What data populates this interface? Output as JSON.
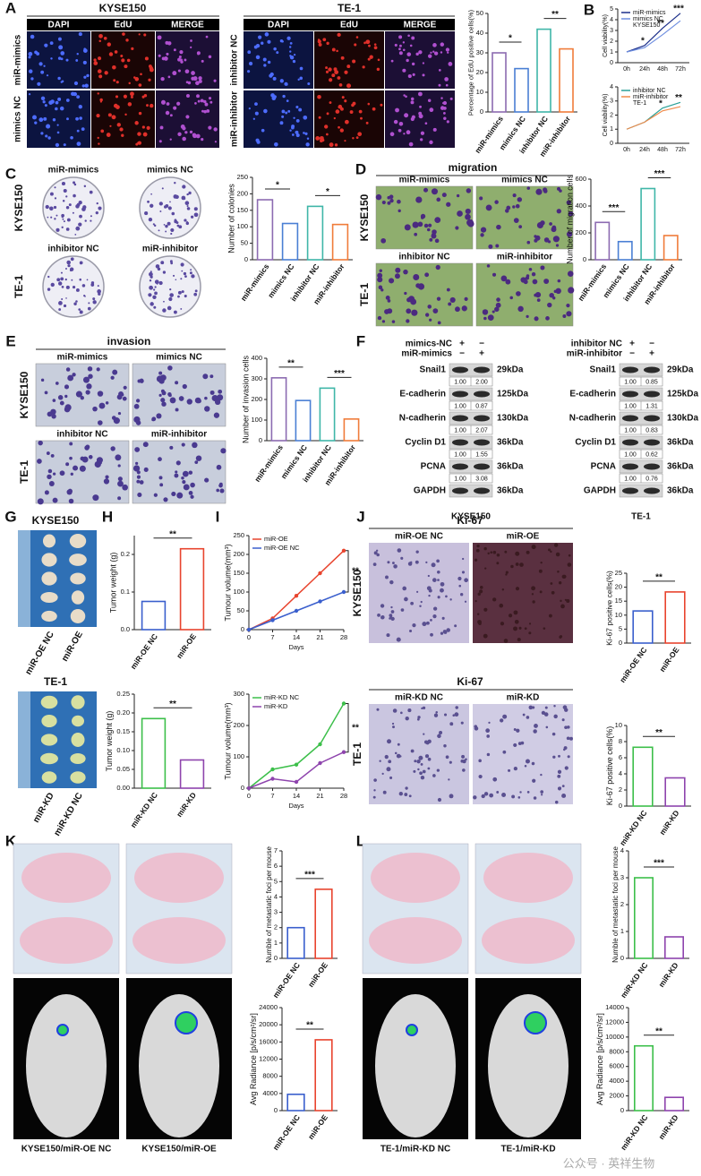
{
  "figure": {
    "panels": [
      "A",
      "B",
      "C",
      "D",
      "E",
      "F",
      "G",
      "H",
      "I",
      "J",
      "K",
      "L"
    ],
    "edu": {
      "cell_lines": [
        "KYSE150",
        "TE-1"
      ],
      "stains": [
        "DAPI",
        "EdU",
        "MERGE"
      ],
      "kyse150_rows": [
        "miR-mimics",
        "mimics NC"
      ],
      "te1_rows": [
        "inhibitor NC",
        "miR-inhibitor"
      ]
    },
    "colony": {
      "images": [
        "miR-mimics",
        "mimics NC",
        "inhibitor NC",
        "miR-inhibitor"
      ],
      "cell_lines": [
        "KYSE150",
        "TE-1"
      ]
    },
    "migration": {
      "title": "migration",
      "images": [
        "miR-mimics",
        "mimics NC",
        "inhibitor NC",
        "miR-inhibitor"
      ],
      "cell_lines": [
        "KYSE150",
        "TE-1"
      ]
    },
    "invasion": {
      "title": "invasion",
      "images": [
        "miR-mimics",
        "mimics NC",
        "inhibitor NC",
        "miR-inhibitor"
      ],
      "cell_lines": [
        "KYSE150",
        "TE-1"
      ]
    },
    "blots": [
      {
        "conditions": [
          {
            "name": "mimics-NC",
            "signs": [
              "+",
              "−"
            ]
          },
          {
            "name": "miR-mimics",
            "signs": [
              "−",
              "+"
            ]
          }
        ],
        "rows": [
          {
            "protein": "Snail1",
            "size": "29kDa",
            "ratios": [
              "1.00",
              "2.00"
            ]
          },
          {
            "protein": "E-cadherin",
            "size": "125kDa",
            "ratios": [
              "1.00",
              "0.87"
            ]
          },
          {
            "protein": "N-cadherin",
            "size": "130kDa",
            "ratios": [
              "1.00",
              "2.07"
            ]
          },
          {
            "protein": "Cyclin D1",
            "size": "36kDa",
            "ratios": [
              "1.00",
              "1.55"
            ]
          },
          {
            "protein": "PCNA",
            "size": "36kDa",
            "ratios": [
              "1.00",
              "3.08"
            ]
          },
          {
            "protein": "GAPDH",
            "size": "36kDa"
          }
        ],
        "cell_line": "KYSE150"
      },
      {
        "conditions": [
          {
            "name": "inhibitor NC",
            "signs": [
              "+",
              "−"
            ]
          },
          {
            "name": "miR-inhibitor",
            "signs": [
              "−",
              "+"
            ]
          }
        ],
        "rows": [
          {
            "protein": "Snail1",
            "size": "29kDa",
            "ratios": [
              "1.00",
              "0.85"
            ]
          },
          {
            "protein": "E-cadherin",
            "size": "125kDa",
            "ratios": [
              "1.00",
              "1.31"
            ]
          },
          {
            "protein": "N-cadherin",
            "size": "130kDa",
            "ratios": [
              "1.00",
              "0.83"
            ]
          },
          {
            "protein": "Cyclin D1",
            "size": "36kDa",
            "ratios": [
              "1.00",
              "0.62"
            ]
          },
          {
            "protein": "PCNA",
            "size": "36kDa",
            "ratios": [
              "1.00",
              "0.76"
            ]
          },
          {
            "protein": "GAPDH",
            "size": "36kDa"
          }
        ],
        "cell_line": "TE-1"
      }
    ],
    "tumors": {
      "cell_lines": [
        "KYSE150",
        "TE-1"
      ],
      "kyse150_groups": [
        "miR-OE NC",
        "miR-OE"
      ],
      "te1_groups": [
        "miR-KD",
        "miR-KD NC"
      ]
    },
    "ihc": {
      "stain": "Ki-67",
      "cell_lines": [
        "KYSE150",
        "TE-1"
      ],
      "kyse150_groups": [
        "miR-OE NC",
        "miR-OE"
      ],
      "te1_groups": [
        "miR-KD NC",
        "miR-KD"
      ]
    },
    "metastasis": {
      "kyse150_mice": [
        "KYSE150/miR-OE NC",
        "KYSE150/miR-OE"
      ],
      "te1_mice": [
        "TE-1/miR-KD NC",
        "TE-1/miR-KD"
      ]
    },
    "watermark": "公众号 · 英祥生物"
  },
  "chart_data": [
    {
      "type": "bar",
      "ylabel": "Percentage of EdU positive cells(%)",
      "categories": [
        "miR-mimics",
        "mimics NC",
        "inhibitor NC",
        "miR-inhibitor"
      ],
      "values": [
        30,
        22,
        42,
        32
      ],
      "colors": [
        "#8c6bb1",
        "#4a7fd4",
        "#3fb6a8",
        "#f07c3a"
      ],
      "ylim": [
        0,
        50
      ],
      "yticks": [
        0,
        10,
        20,
        30,
        40,
        50
      ],
      "annotations": [
        "*",
        "**"
      ]
    },
    {
      "type": "line",
      "ylabel": "Cell viability(%)",
      "subtitle": "KYSE150",
      "categories": [
        "0h",
        "24h",
        "48h",
        "72h"
      ],
      "series": [
        {
          "name": "miR-mimics",
          "color": "#1c2f8a",
          "values": [
            1,
            1.6,
            3.2,
            4.6
          ]
        },
        {
          "name": "mimics NC",
          "color": "#6f8fe0",
          "values": [
            1,
            1.4,
            2.6,
            3.9
          ]
        }
      ],
      "ylim": [
        0,
        5
      ],
      "yticks": [
        0,
        1,
        2,
        3,
        4,
        5
      ],
      "annotations": [
        "*",
        "**",
        "***"
      ]
    },
    {
      "type": "line",
      "ylabel": "Cell viability(%)",
      "subtitle": "TE-1",
      "categories": [
        "0h",
        "24h",
        "48h",
        "72h"
      ],
      "series": [
        {
          "name": "inhibitor NC",
          "color": "#2aa198",
          "values": [
            1,
            1.5,
            2.5,
            2.9
          ]
        },
        {
          "name": "miR-inhibitor",
          "color": "#f08a4b",
          "values": [
            1,
            1.5,
            2.3,
            2.6
          ]
        }
      ],
      "ylim": [
        0,
        4
      ],
      "yticks": [
        0,
        1,
        2,
        3,
        4
      ],
      "annotations": [
        "*",
        "**"
      ]
    },
    {
      "type": "bar",
      "ylabel": "Number of colonies",
      "categories": [
        "miR-mimics",
        "mimics NC",
        "inhibitor NC",
        "miR-inhibitor"
      ],
      "values": [
        182,
        110,
        162,
        107
      ],
      "colors": [
        "#8c6bb1",
        "#4a7fd4",
        "#3fb6a8",
        "#f07c3a"
      ],
      "ylim": [
        0,
        250
      ],
      "yticks": [
        0,
        50,
        100,
        150,
        200,
        250
      ],
      "annotations": [
        "*",
        "*"
      ]
    },
    {
      "type": "bar",
      "ylabel": "Number of migration cells",
      "categories": [
        "miR-mimics",
        "mimics NC",
        "inhibitor NC",
        "miR-inhibitor"
      ],
      "values": [
        278,
        135,
        530,
        180
      ],
      "colors": [
        "#8c6bb1",
        "#4a7fd4",
        "#3fb6a8",
        "#f07c3a"
      ],
      "ylim": [
        0,
        600
      ],
      "yticks": [
        0,
        200,
        400,
        600
      ],
      "annotations": [
        "***",
        "***"
      ]
    },
    {
      "type": "bar",
      "ylabel": "Number of invasion cells",
      "categories": [
        "miR-mimics",
        "mimics NC",
        "inhibitor NC",
        "miR-inhibitor"
      ],
      "values": [
        305,
        195,
        255,
        105
      ],
      "colors": [
        "#8c6bb1",
        "#4a7fd4",
        "#3fb6a8",
        "#f07c3a"
      ],
      "ylim": [
        0,
        400
      ],
      "yticks": [
        0,
        100,
        200,
        300,
        400
      ],
      "annotations": [
        "**",
        "***"
      ]
    },
    {
      "type": "bar",
      "ylabel": "Tumor weight (g)",
      "categories": [
        "miR-OE NC",
        "miR-OE"
      ],
      "values": [
        0.075,
        0.215
      ],
      "colors": [
        "#3a5fcd",
        "#e8442e"
      ],
      "ylim": [
        0,
        0.25
      ],
      "yticks": [
        {
          "value": 0,
          "label": "0.0"
        },
        0.1,
        0.2
      ],
      "annotations": [
        "**"
      ]
    },
    {
      "type": "bar",
      "ylabel": "Tumor weight (g)",
      "categories": [
        "miR-KD NC",
        "miR-KD"
      ],
      "values": [
        0.185,
        0.075
      ],
      "colors": [
        "#3cbf4a",
        "#8e44ad"
      ],
      "ylim": [
        0,
        0.25
      ],
      "yticks": [
        {
          "value": 0,
          "label": "0.00"
        },
        0.05,
        {
          "value": 0.1,
          "label": "0.10"
        },
        0.15,
        {
          "value": 0.2,
          "label": "0.20"
        },
        0.25
      ],
      "annotations": [
        "**"
      ]
    },
    {
      "type": "line",
      "ylabel": "Tumour volume(mm³)",
      "xlabel": "Days",
      "x": [
        0,
        7,
        14,
        21,
        28
      ],
      "xlim": [
        0,
        28
      ],
      "xticks": [
        0,
        7,
        14,
        21,
        28
      ],
      "series": [
        {
          "name": "miR-OE",
          "color": "#e8442e",
          "values": [
            0,
            30,
            90,
            150,
            210
          ]
        },
        {
          "name": "miR-OE NC",
          "color": "#3a5fcd",
          "values": [
            0,
            25,
            50,
            75,
            100
          ]
        }
      ],
      "ylim": [
        0,
        250
      ],
      "yticks": [
        0,
        50,
        100,
        150,
        200,
        250
      ],
      "annotations": [
        "**"
      ]
    },
    {
      "type": "line",
      "ylabel": "Tumour volume(mm³)",
      "xlabel": "Days",
      "x": [
        0,
        7,
        14,
        21,
        28
      ],
      "xlim": [
        0,
        28
      ],
      "xticks": [
        0,
        7,
        14,
        21,
        28
      ],
      "series": [
        {
          "name": "miR-KD NC",
          "color": "#3cbf4a",
          "values": [
            0,
            60,
            75,
            140,
            270
          ]
        },
        {
          "name": "miR-KD",
          "color": "#8e44ad",
          "values": [
            0,
            30,
            20,
            80,
            115
          ]
        }
      ],
      "ylim": [
        0,
        300
      ],
      "yticks": [
        0,
        100,
        200,
        300
      ],
      "annotations": [
        "**"
      ]
    },
    {
      "type": "bar",
      "ylabel": "Ki-67 positive cells(%)",
      "categories": [
        "miR-OE NC",
        "miR-OE"
      ],
      "values": [
        11.5,
        18.3
      ],
      "colors": [
        "#3a5fcd",
        "#e8442e"
      ],
      "ylim": [
        0,
        25
      ],
      "yticks": [
        0,
        5,
        10,
        15,
        20,
        25
      ],
      "annotations": [
        "**"
      ]
    },
    {
      "type": "bar",
      "ylabel": "Ki-67 positive cells(%)",
      "categories": [
        "miR-KD NC",
        "miR-KD"
      ],
      "values": [
        7.3,
        3.5
      ],
      "colors": [
        "#3cbf4a",
        "#8e44ad"
      ],
      "ylim": [
        0,
        10
      ],
      "yticks": [
        0,
        2,
        4,
        6,
        8,
        10
      ],
      "annotations": [
        "**"
      ]
    },
    {
      "type": "bar",
      "ylabel": "Numble of metastatic foci per mouse",
      "categories": [
        "miR-OE NC",
        "miR-OE"
      ],
      "values": [
        2,
        4.5
      ],
      "colors": [
        "#3a5fcd",
        "#e8442e"
      ],
      "ylim": [
        0,
        7
      ],
      "yticks": [
        0,
        1,
        2,
        3,
        4,
        5,
        6,
        7
      ],
      "annotations": [
        "***"
      ]
    },
    {
      "type": "bar",
      "ylabel": "Avg Radiance [p/s/cm²/sr]",
      "categories": [
        "miR-OE NC",
        "miR-OE"
      ],
      "values": [
        3800,
        16500
      ],
      "colors": [
        "#3a5fcd",
        "#e8442e"
      ],
      "ylim": [
        0,
        24000
      ],
      "yticks": [
        0,
        4000,
        8000,
        12000,
        16000,
        20000,
        24000
      ],
      "annotations": [
        "**"
      ]
    },
    {
      "type": "bar",
      "ylabel": "Numble of metastatic foci per mouse",
      "categories": [
        "miR-KD NC",
        "miR-KD"
      ],
      "values": [
        3,
        0.8
      ],
      "colors": [
        "#3cbf4a",
        "#8e44ad"
      ],
      "ylim": [
        0,
        4
      ],
      "yticks": [
        0,
        1,
        2,
        3,
        4
      ],
      "annotations": [
        "***"
      ]
    },
    {
      "type": "bar",
      "ylabel": "Avg Radiance [p/s/cm²/sr]",
      "categories": [
        "miR-KD NC",
        "miR-KD"
      ],
      "values": [
        8800,
        1800
      ],
      "colors": [
        "#3cbf4a",
        "#8e44ad"
      ],
      "ylim": [
        0,
        14000
      ],
      "yticks": [
        0,
        2000,
        4000,
        6000,
        8000,
        10000,
        12000,
        14000
      ],
      "annotations": [
        "**"
      ]
    }
  ]
}
